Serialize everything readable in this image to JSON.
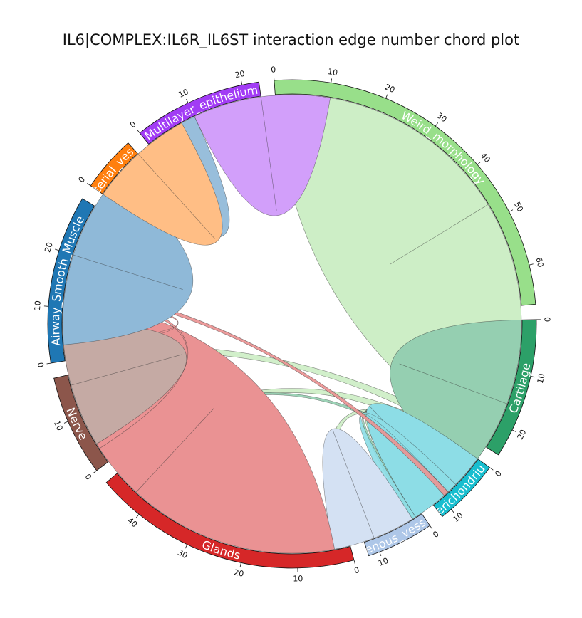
{
  "chart_data": {
    "type": "chord",
    "title": "IL6|COMPLEX:IL6R_IL6ST interaction edge number chord plot",
    "groups": [
      {
        "name": "Weird_morphology",
        "total": 67,
        "color": "#98df8a",
        "ribbon": "#cdeec6",
        "ticks": [
          0,
          10,
          20,
          30,
          40,
          50,
          60
        ]
      },
      {
        "name": "Cartilage",
        "total": 25,
        "color": "#2ca068",
        "ribbon": "#95cfb1",
        "ticks": [
          0,
          10,
          20
        ]
      },
      {
        "name": "Perichondrium",
        "total": 12,
        "color": "#17becf",
        "ribbon": "#8ddde6",
        "ticks": [
          0,
          10
        ]
      },
      {
        "name": "Venous_vessel",
        "total": 12,
        "color": "#aec7e8",
        "ribbon": "#d4e1f3",
        "ticks": [
          0,
          10
        ]
      },
      {
        "name": "Glands",
        "total": 48,
        "color": "#d62728",
        "ribbon": "#ea9293",
        "ticks": [
          0,
          10,
          20,
          30,
          40
        ]
      },
      {
        "name": "Nerve",
        "total": 18,
        "color": "#8c564b",
        "ribbon": "#c5aaa4",
        "ticks": [
          0,
          10
        ]
      },
      {
        "name": "Airway_Smooth_Muscle",
        "total": 30,
        "color": "#1f77b4",
        "ribbon": "#8fb9d8",
        "ticks": [
          0,
          10,
          20
        ]
      },
      {
        "name": "Arterial_vessel",
        "total": 10,
        "color": "#ff7f0e",
        "ribbon": "#ffbe85",
        "ticks": [
          0
        ]
      },
      {
        "name": "Multilayer_epithelium",
        "total": 23,
        "color": "#a23cf5",
        "ribbon": "#d29ffa",
        "ticks": [
          0,
          10,
          20
        ]
      }
    ],
    "links": [
      {
        "from": "Weird_morphology",
        "to": "Weird_morphology",
        "value": 47
      },
      {
        "from": "Weird_morphology",
        "to": "Airway_Smooth_Muscle",
        "value": 2
      },
      {
        "from": "Weird_morphology",
        "to": "Nerve",
        "value": 2
      },
      {
        "from": "Weird_morphology",
        "to": "Glands",
        "value": 3
      },
      {
        "from": "Weird_morphology",
        "to": "Venous_vessel",
        "value": 1
      },
      {
        "from": "Cartilage",
        "to": "Cartilage",
        "value": 16
      },
      {
        "from": "Cartilage",
        "to": "Nerve",
        "value": 1
      },
      {
        "from": "Cartilage",
        "to": "Venous_vessel",
        "value": 1
      },
      {
        "from": "Perichondrium",
        "to": "Perichondrium",
        "value": 8
      },
      {
        "from": "Perichondrium",
        "to": "Cartilage",
        "value": 2
      },
      {
        "from": "Venous_vessel",
        "to": "Venous_vessel",
        "value": 8
      },
      {
        "from": "Glands",
        "to": "Glands",
        "value": 40
      },
      {
        "from": "Glands",
        "to": "Airway_Smooth_Muscle",
        "value": 1
      },
      {
        "from": "Glands",
        "to": "Nerve",
        "value": 1
      },
      {
        "from": "Glands",
        "to": "Cartilage",
        "value": 1
      },
      {
        "from": "Nerve",
        "to": "Nerve",
        "value": 12
      },
      {
        "from": "Airway_Smooth_Muscle",
        "to": "Airway_Smooth_Muscle",
        "value": 17
      },
      {
        "from": "Airway_Smooth_Muscle",
        "to": "Multilayer_epithelium",
        "value": 10
      },
      {
        "from": "Arterial_vessel",
        "to": "Arterial_vessel",
        "value": 10
      },
      {
        "from": "Multilayer_epithelium",
        "to": "Multilayer_epithelium",
        "value": 13
      }
    ]
  }
}
